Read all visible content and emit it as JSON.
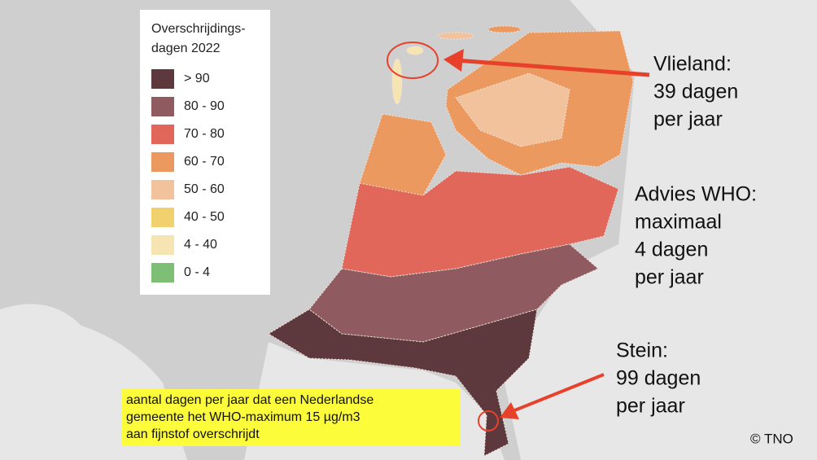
{
  "legend": {
    "title": [
      "Overschrijdings-",
      "dagen 2022"
    ],
    "items": [
      {
        "label": "> 90",
        "color": "#5d393d"
      },
      {
        "label": "80 - 90",
        "color": "#8f5b60"
      },
      {
        "label": "70 - 80",
        "color": "#e1675b"
      },
      {
        "label": "60 - 70",
        "color": "#ec995f"
      },
      {
        "label": "50 - 60",
        "color": "#f2c29d"
      },
      {
        "label": "40 - 50",
        "color": "#f1d06e"
      },
      {
        "label": "4 - 40",
        "color": "#f6e5b2"
      },
      {
        "label": "0 - 4",
        "color": "#7dbf75"
      }
    ]
  },
  "annotations": [
    {
      "lines": [
        "Vlieland:",
        "39 dagen",
        "per jaar"
      ]
    },
    {
      "lines": [
        "Advies WHO:",
        "maximaal",
        "4 dagen",
        "per jaar"
      ]
    },
    {
      "lines": [
        "Stein:",
        "99 dagen",
        "per jaar"
      ]
    }
  ],
  "caption": [
    "aantal dagen per jaar dat een Nederlandse",
    "gemeente het WHO-maximum 15 µg/m3",
    "aan fijnstof overschrijdt"
  ],
  "credit": "© TNO"
}
